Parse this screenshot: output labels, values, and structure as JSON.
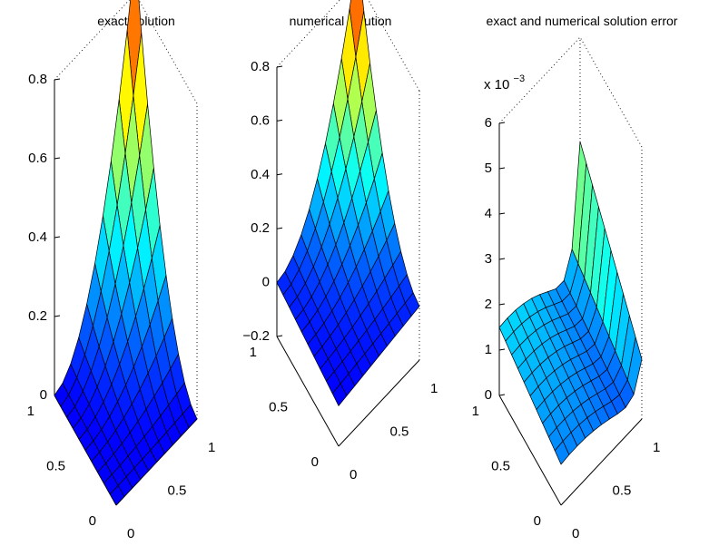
{
  "figure": {
    "background": "#ffffff",
    "colormap": "jet",
    "shading": "faceted"
  },
  "chart_data": [
    {
      "type": "surface",
      "title": "exact solution",
      "grid_n": 10,
      "x_ticks": [
        "0",
        "0.5",
        "1"
      ],
      "y_ticks": [
        "0",
        "0.5",
        "1"
      ],
      "z_ticks": [
        "0",
        "0.2",
        "0.4",
        "0.6",
        "0.8"
      ],
      "zlim": [
        0,
        0.8
      ],
      "z_max": 0.9,
      "model": "(x*y)^2 scaled to peak at corner (1,1)"
    },
    {
      "type": "surface",
      "title": "numerical solution",
      "grid_n": 10,
      "x_ticks": [
        "0",
        "0.5",
        "1"
      ],
      "y_ticks": [
        "0",
        "0.5",
        "1"
      ],
      "z_ticks": [
        "−0.2",
        "0",
        "0.2",
        "0.4",
        "0.6",
        "0.8"
      ],
      "zlim": [
        -0.2,
        0.8
      ],
      "z_max": 0.9,
      "z_min": -0.05,
      "model": "(x*y)^2 with slight negative offset near the low corner"
    },
    {
      "type": "surface",
      "title": "exact and numerical solution error",
      "grid_n": 10,
      "x_ticks": [
        "0",
        "0.5",
        "1"
      ],
      "y_ticks": [
        "0",
        "0.5",
        "1"
      ],
      "z_ticks": [
        "0",
        "1",
        "2",
        "3",
        "4",
        "5",
        "6"
      ],
      "zlim": [
        0,
        6
      ],
      "z_scale_label_base": "x 10",
      "z_scale_label_exp": "−3",
      "z_max": 4.6,
      "model": "small error (~1.5e-3) over most of domain, spike ~4.6e-3 along x=1 edge"
    }
  ]
}
